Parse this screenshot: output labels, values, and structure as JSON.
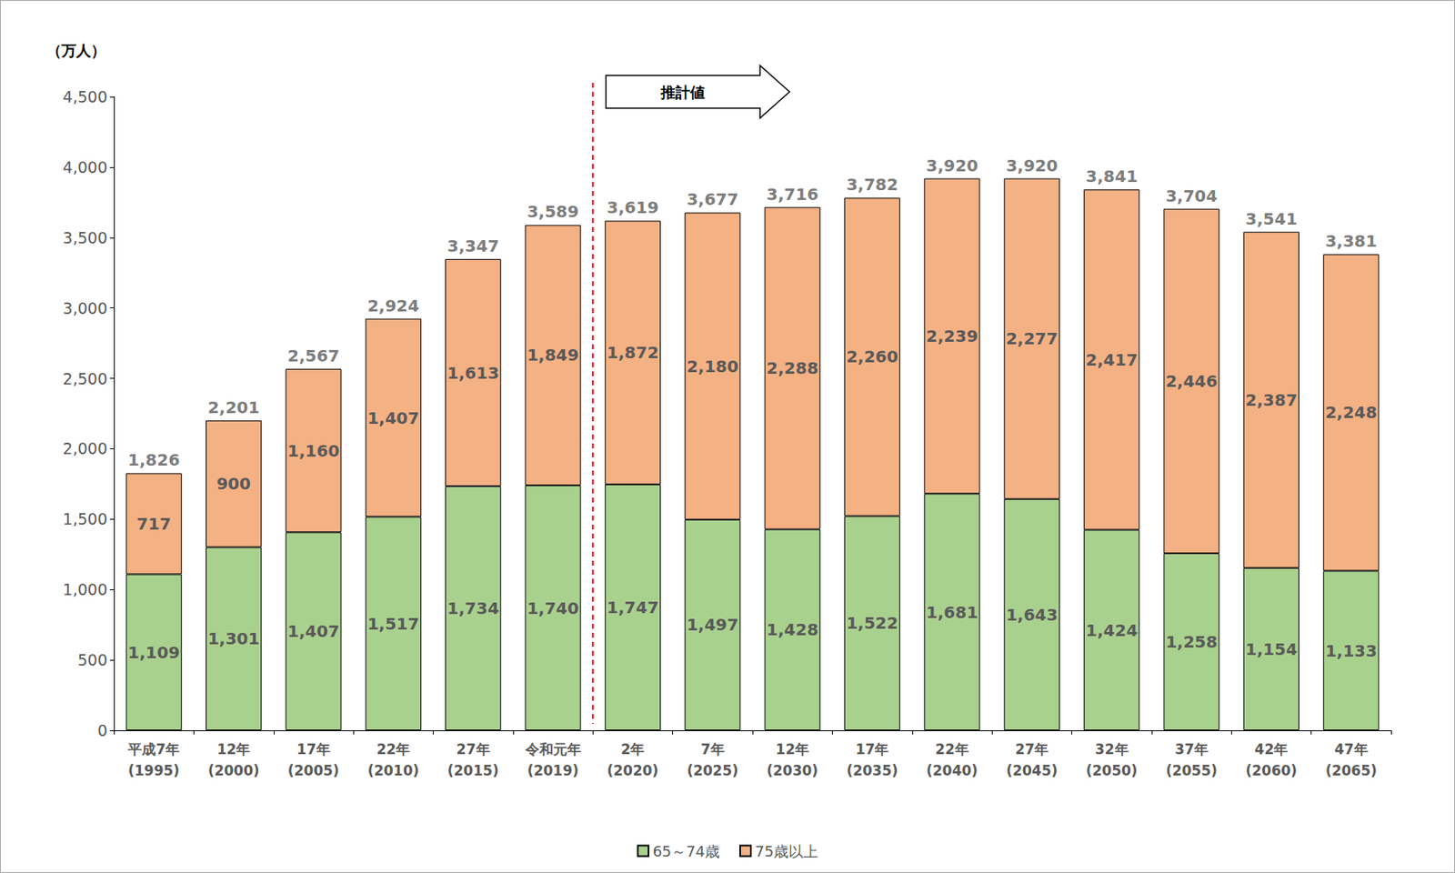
{
  "chart_data": {
    "type": "bar",
    "ylabel": "（万人）",
    "categories": [
      "平成7年\n(1995)",
      "12年\n(2000)",
      "17年\n(2005)",
      "22年\n(2010)",
      "27年\n(2015)",
      "令和元年\n(2019)",
      "2年\n(2020)",
      "7年\n(2025)",
      "12年\n(2030)",
      "17年\n(2035)",
      "22年\n(2040)",
      "27年\n(2045)",
      "32年\n(2050)",
      "37年\n(2055)",
      "42年\n(2060)",
      "47年\n(2065)"
    ],
    "series": [
      {
        "name": "65～74歳",
        "color": "#a9d18e",
        "values": [
          1109,
          1301,
          1407,
          1517,
          1734,
          1740,
          1747,
          1497,
          1428,
          1522,
          1681,
          1643,
          1424,
          1258,
          1154,
          1133
        ],
        "value_labels": [
          "1,109",
          "1,301",
          "1,407",
          "1,517",
          "1,734",
          "1,740",
          "1,747",
          "1,497",
          "1,428",
          "1,522",
          "1,681",
          "1,643",
          "1,424",
          "1,258",
          "1,154",
          "1,133"
        ]
      },
      {
        "name": "75歳以上",
        "color": "#f4b183",
        "values": [
          717,
          900,
          1160,
          1407,
          1613,
          1849,
          1872,
          2180,
          2288,
          2260,
          2239,
          2277,
          2417,
          2446,
          2387,
          2248
        ],
        "value_labels": [
          "717",
          "900",
          "1,160",
          "1,407",
          "1,613",
          "1,849",
          "1,872",
          "2,180",
          "2,288",
          "2,260",
          "2,239",
          "2,277",
          "2,417",
          "2,446",
          "2,387",
          "2,248"
        ]
      }
    ],
    "totals": {
      "values": [
        1826,
        2201,
        2567,
        2924,
        3347,
        3589,
        3619,
        3677,
        3716,
        3782,
        3920,
        3920,
        3841,
        3704,
        3541,
        3381
      ],
      "value_labels": [
        "1,826",
        "2,201",
        "2,567",
        "2,924",
        "3,347",
        "3,589",
        "3,619",
        "3,677",
        "3,716",
        "3,782",
        "3,920",
        "3,920",
        "3,841",
        "3,704",
        "3,541",
        "3,381"
      ]
    },
    "annotations": [
      {
        "text": "推計値",
        "x": "2年\n(2020)"
      }
    ],
    "ylim": [
      0,
      4500
    ],
    "yticks": [
      0,
      500,
      {
        "value": 1000,
        "label": "1,000"
      },
      {
        "value": 1500,
        "label": "1,500"
      },
      {
        "value": 2000,
        "label": "2,000"
      },
      {
        "value": 2500,
        "label": "2,500"
      },
      {
        "value": 3000,
        "label": "3,000"
      },
      {
        "value": 3500,
        "label": "3,500"
      },
      {
        "value": 4000,
        "label": "4,000"
      },
      {
        "value": 4500,
        "label": "4,500"
      }
    ],
    "stacked": true,
    "data_labels": true,
    "grid": false,
    "legend": "bottom"
  }
}
